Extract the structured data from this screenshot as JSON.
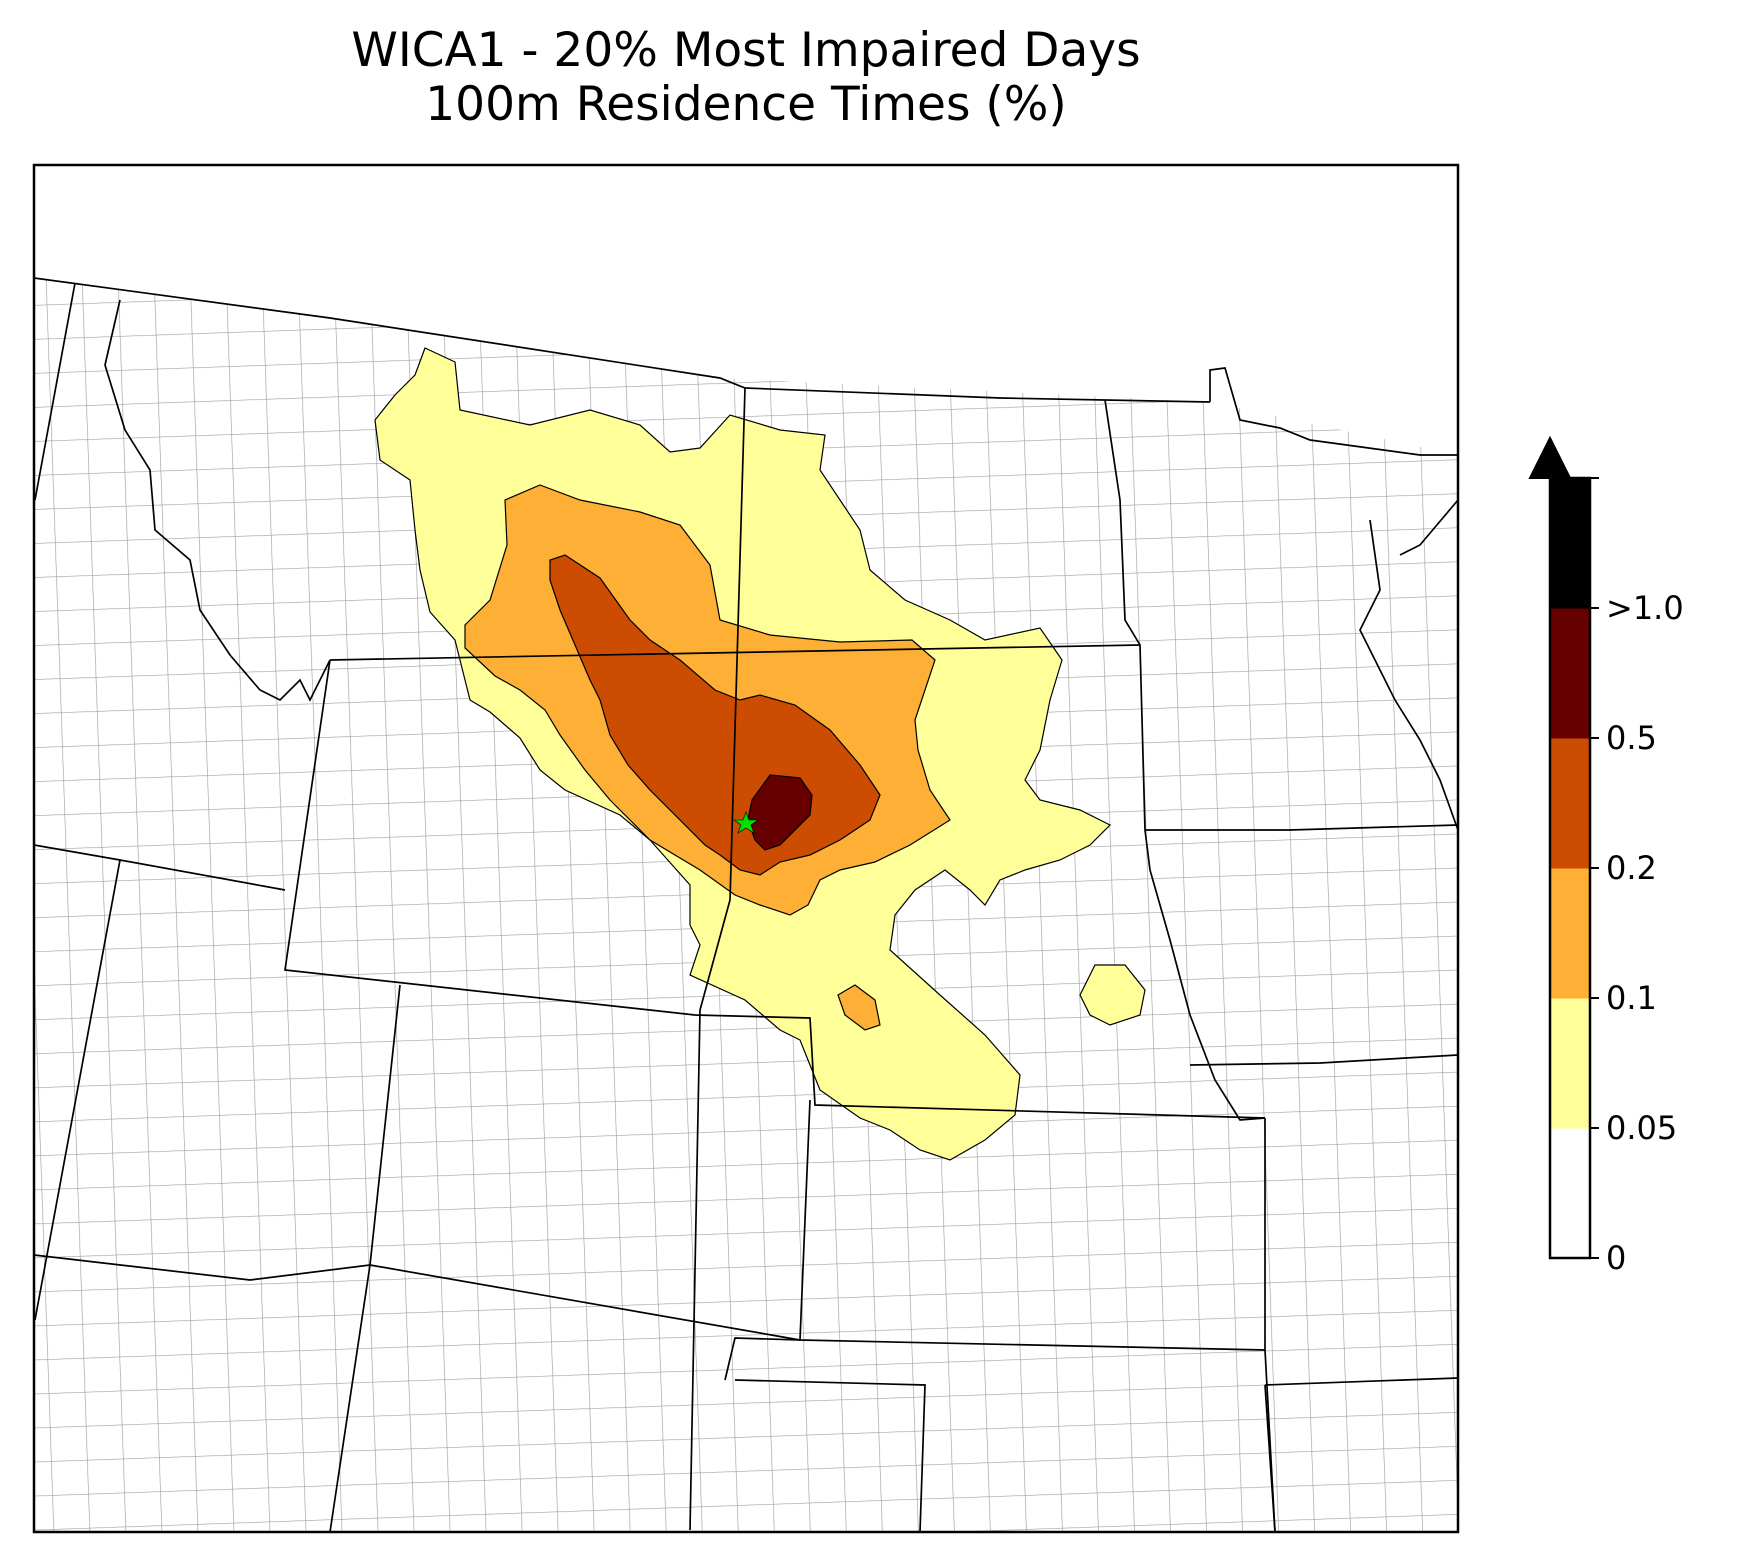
{
  "title": {
    "line1": "WICA1 - 20% Most Impaired Days",
    "line2": "100m Residence Times (%)"
  },
  "receptor": {
    "name": "WICA1",
    "marker_color": "#00e000",
    "icon": "star-icon"
  },
  "colorbar": {
    "extend": "max",
    "ticks": [
      "0",
      "0.05",
      "0.1",
      "0.2",
      "0.5",
      ">1.0"
    ],
    "levels": [
      {
        "from": "0",
        "to": "0.05",
        "color": "#ffffff"
      },
      {
        "from": "0.05",
        "to": "0.1",
        "color": "#ffff99"
      },
      {
        "from": "0.1",
        "to": "0.2",
        "color": "#fdb035"
      },
      {
        "from": "0.2",
        "to": "0.5",
        "color": "#cc4c02"
      },
      {
        "from": "0.5",
        "to": "1.0",
        "color": "#660000"
      },
      {
        "from": "1.0",
        "to": "max",
        "color": "#000000"
      }
    ]
  },
  "colors": {
    "state_border": "#000000",
    "county_border": "#a0a0a0",
    "background": "#ffffff"
  }
}
